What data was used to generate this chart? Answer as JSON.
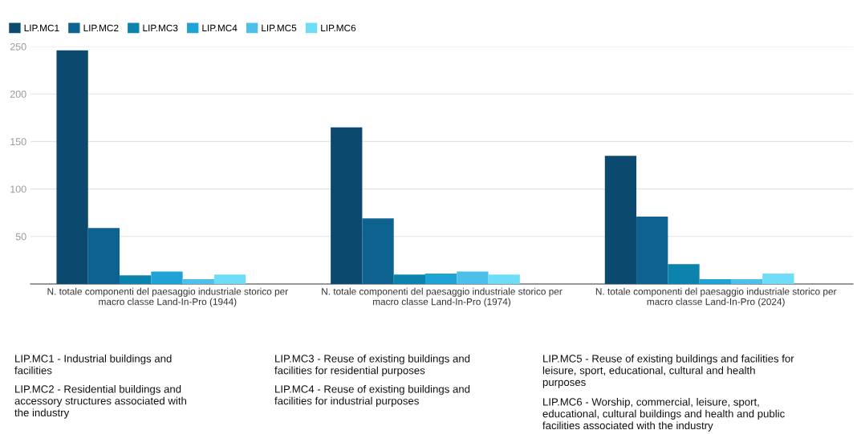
{
  "chart_data": {
    "type": "bar",
    "categories": [
      "N. totale componenti del paesaggio industriale storico per macro classe Land-In-Pro (1944)",
      "N. totale componenti del paesaggio industriale storico per macro classe Land-In-Pro (1974)",
      "N. totale componenti del paesaggio industriale storico per macro classe Land-In-Pro (2024)"
    ],
    "series": [
      {
        "name": "LIP.MC1",
        "color": "#0b4a6e",
        "values": [
          246,
          165,
          135
        ]
      },
      {
        "name": "LIP.MC2",
        "color": "#0e6290",
        "values": [
          59,
          69,
          71
        ]
      },
      {
        "name": "LIP.MC3",
        "color": "#0b83ad",
        "values": [
          9,
          10,
          21
        ]
      },
      {
        "name": "LIP.MC4",
        "color": "#1fa3d4",
        "values": [
          13,
          11,
          5
        ]
      },
      {
        "name": "LIP.MC5",
        "color": "#4ebfe8",
        "values": [
          5,
          13,
          5
        ]
      },
      {
        "name": "LIP.MC6",
        "color": "#6fddf7",
        "values": [
          10,
          10,
          11
        ]
      }
    ],
    "ylim": [
      0,
      250
    ],
    "yticks": [
      50,
      100,
      150,
      200,
      250
    ],
    "grid": "y",
    "legend": "top left",
    "annotations": [
      "LIP.MC1 - Industrial buildings and facilities",
      "LIP.MC2 - Residential buildings and accessory structures associated with the industry",
      "LIP.MC3 - Reuse of existing buildings and facilities for residential purposes",
      "LIP.MC4 - Reuse of existing buildings and facilities for industrial purposes",
      "LIP.MC5 - Reuse of existing buildings and facilities for leisure, sport, educational, cultural and health purposes",
      "LIP.MC6 - Worship, commercial, leisure, sport, educational, cultural buildings and health and public facilities associated with the industry"
    ]
  }
}
